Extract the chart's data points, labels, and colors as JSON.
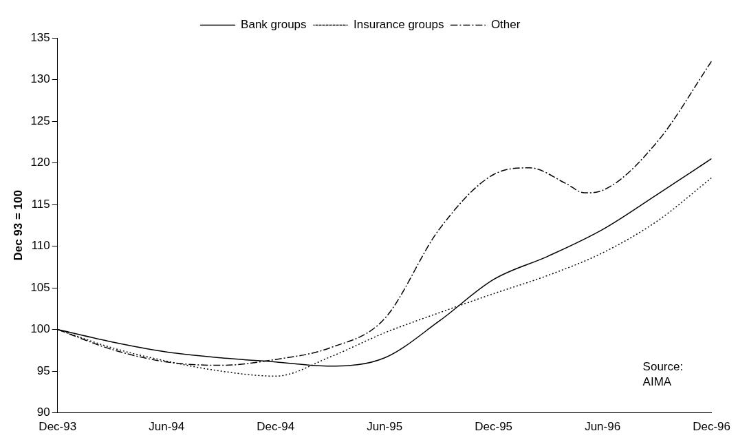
{
  "chart_data": {
    "type": "line",
    "ylabel": "Dec 93 = 100",
    "annotations": [
      "Source:\nAIMA"
    ],
    "x": [
      "1993-12",
      "1994-03",
      "1994-06",
      "1994-09",
      "1994-12",
      "1995-03",
      "1995-06",
      "1995-09",
      "1995-12",
      "1996-02",
      "1996-04",
      "1996-05",
      "1996-06",
      "1996-09",
      "1996-12"
    ],
    "series": [
      {
        "name": "Bank groups",
        "color": "#000000",
        "line_style": "solid",
        "x": [
          "1993-12",
          "1994-03",
          "1994-06",
          "1994-09",
          "1994-12",
          "1995-03",
          "1995-06",
          "1995-09",
          "1995-12",
          "1996-03",
          "1996-06",
          "1996-09",
          "1996-12"
        ],
        "values": [
          100,
          98.5,
          97.3,
          96.6,
          96.1,
          95.6,
          96.6,
          101,
          106,
          108.8,
          112,
          116.2,
          120.5
        ]
      },
      {
        "name": "Insurance groups",
        "color": "#000000",
        "line_style": "dotted",
        "x": [
          "1993-12",
          "1994-03",
          "1994-06",
          "1994-09",
          "1994-12",
          "1995-03",
          "1995-06",
          "1995-09",
          "1995-12",
          "1996-03",
          "1996-06",
          "1996-09",
          "1996-12"
        ],
        "values": [
          100,
          97.8,
          96.2,
          95,
          94.4,
          96.7,
          99.6,
          102,
          104.3,
          106.5,
          109.2,
          113,
          118.2
        ]
      },
      {
        "name": "Other",
        "color": "#000000",
        "line_style": "dashed",
        "values": [
          100,
          97.6,
          96.1,
          95.7,
          96.4,
          97.8,
          101.3,
          112,
          118.6,
          119.4,
          117.5,
          116.4,
          116.7,
          122.5,
          132.2
        ]
      }
    ],
    "xlim": [
      "1993-12",
      "1996-12"
    ],
    "xticks": [
      {
        "value": "1993-12",
        "label": "Dec-93"
      },
      {
        "value": "1994-06",
        "label": "Jun-94"
      },
      {
        "value": "1994-12",
        "label": "Dec-94"
      },
      {
        "value": "1995-06",
        "label": "Jun-95"
      },
      {
        "value": "1995-12",
        "label": "Dec-95"
      },
      {
        "value": "1996-06",
        "label": "Jun-96"
      },
      {
        "value": "1996-12",
        "label": "Dec-96"
      }
    ],
    "ylim": [
      90,
      135
    ],
    "yticks": [
      90,
      95,
      100,
      105,
      110,
      115,
      120,
      125,
      130,
      135
    ],
    "grid": false,
    "legend": "top",
    "marker": "none"
  }
}
